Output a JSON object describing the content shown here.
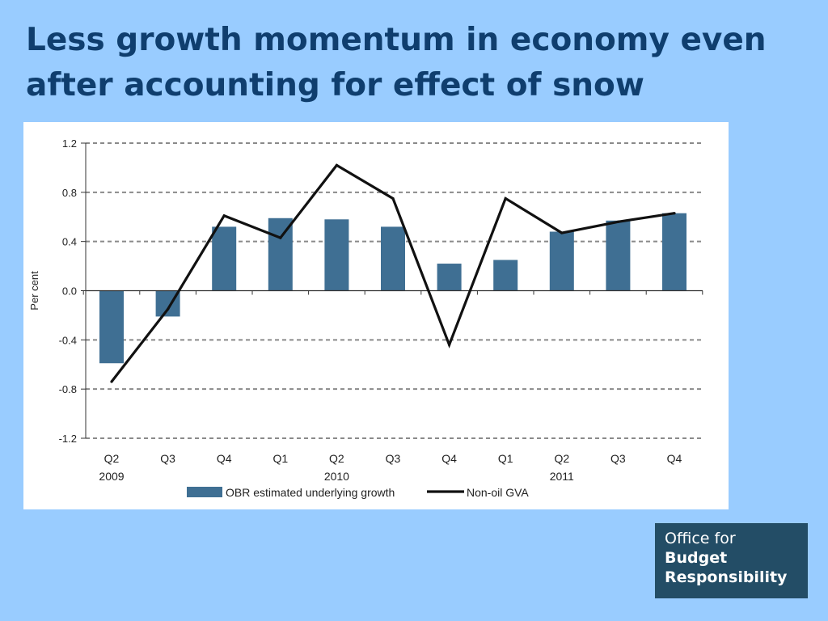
{
  "slide": {
    "title_line1": "Less growth momentum in economy even",
    "title_line2": "after accounting for effect of snow"
  },
  "logo": {
    "line1": "Office for",
    "line2": "Budget",
    "line3": "Responsibility"
  },
  "colors": {
    "background": "#99ccff",
    "title": "#0f3e6e",
    "bar": "#3f6f93",
    "line": "#111111",
    "logo_bg": "#234d66"
  },
  "chart_data": {
    "type": "bar",
    "title": "",
    "xlabel": "",
    "ylabel": "Per cent",
    "ylim": [
      -1.2,
      1.2
    ],
    "yticks": [
      1.2,
      0.8,
      0.4,
      0.0,
      -0.4,
      -0.8,
      -1.2
    ],
    "ytick_labels": [
      "1.2",
      "0.8",
      "0.4",
      "0.0",
      "-0.4",
      "-0.8",
      "-1.2"
    ],
    "grid": "horizontal dashed",
    "categories": [
      "Q2",
      "Q3",
      "Q4",
      "Q1",
      "Q2",
      "Q3",
      "Q4",
      "Q1",
      "Q2",
      "Q3",
      "Q4"
    ],
    "year_labels": [
      {
        "category_index": 0,
        "label": "2009"
      },
      {
        "category_index": 4,
        "label": "2010"
      },
      {
        "category_index": 8,
        "label": "2011"
      }
    ],
    "legend_position": "bottom",
    "series": [
      {
        "name": "OBR estimated underlying growth",
        "type": "bar",
        "values": [
          -0.59,
          -0.21,
          0.52,
          0.59,
          0.58,
          0.52,
          0.22,
          0.25,
          0.48,
          0.57,
          0.63
        ]
      },
      {
        "name": "Non-oil GVA",
        "type": "line",
        "values": [
          -0.74,
          -0.15,
          0.61,
          0.43,
          1.02,
          0.75,
          -0.44,
          0.75,
          0.47,
          0.56,
          0.63
        ]
      }
    ]
  }
}
